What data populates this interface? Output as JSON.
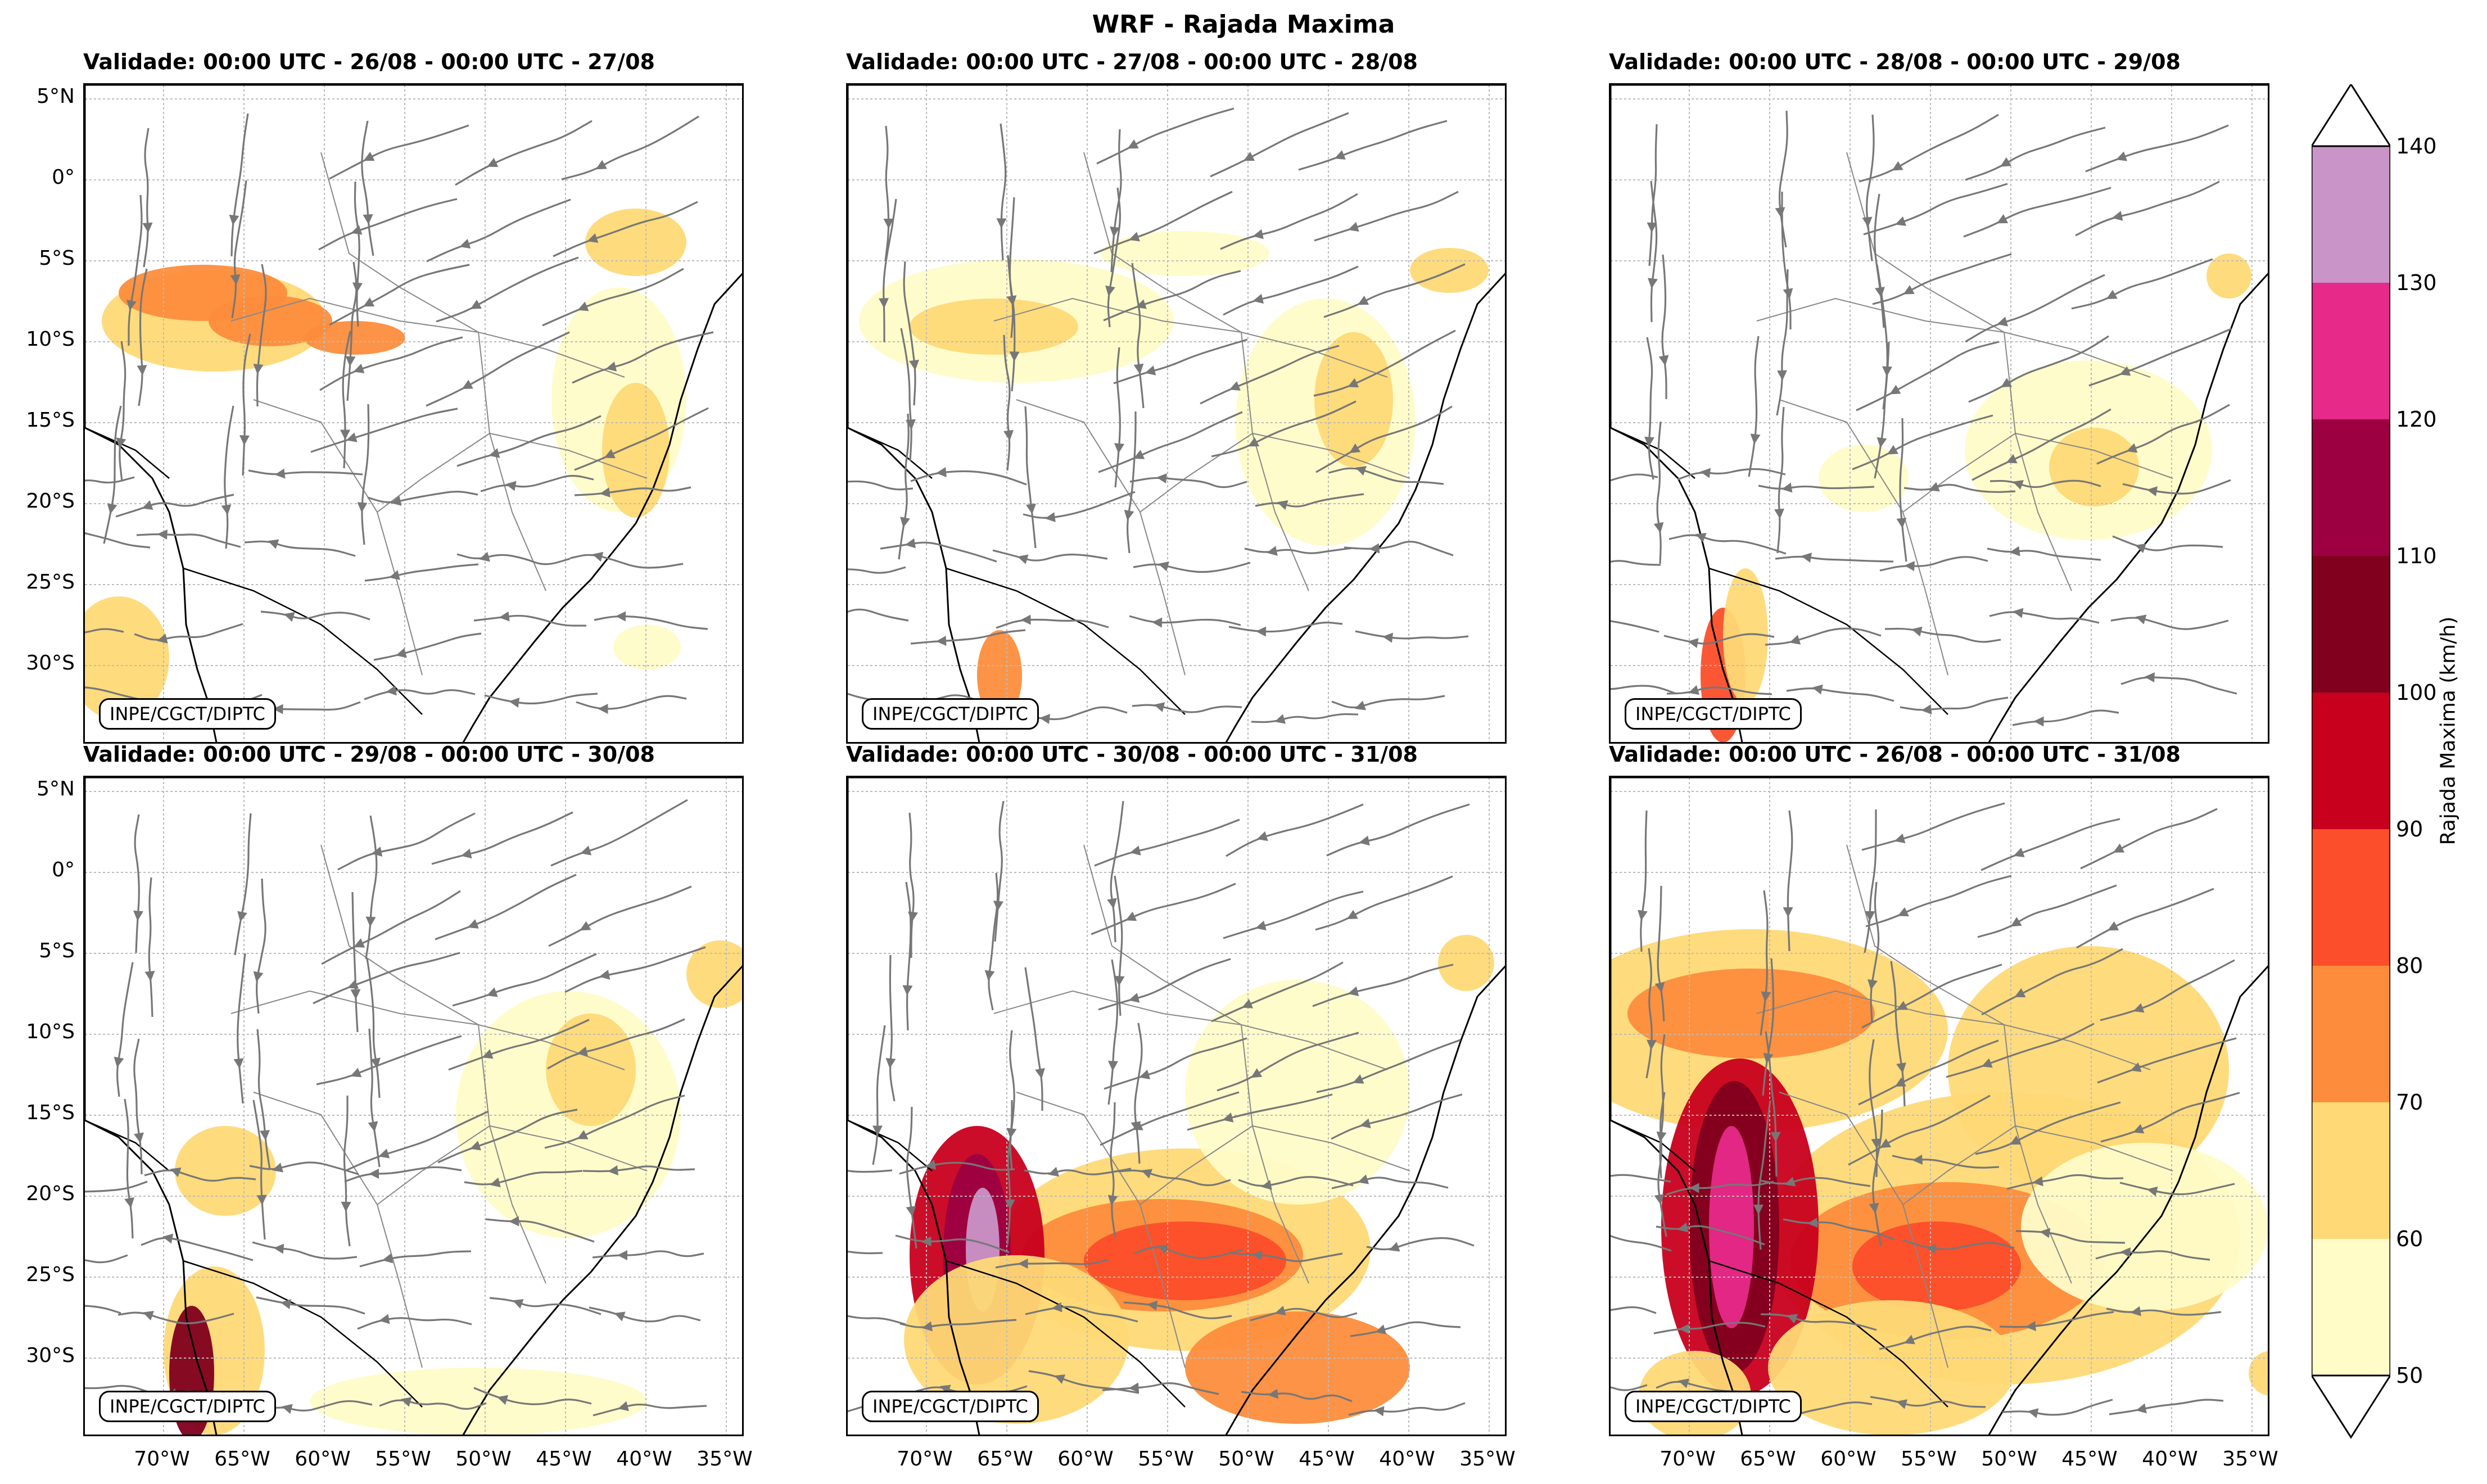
{
  "title": "WRF - Rajada Maxima",
  "credit": "INPE/CGCT/DIPTC",
  "panels": [
    {
      "title": "Validade: 00:00 UTC - 26/08 - 00:00 UTC - 27/08"
    },
    {
      "title": "Validade: 00:00 UTC - 27/08 - 00:00 UTC - 28/08"
    },
    {
      "title": "Validade: 00:00 UTC - 28/08 - 00:00 UTC - 29/08"
    },
    {
      "title": "Validade: 00:00 UTC - 29/08 - 00:00 UTC - 30/08"
    },
    {
      "title": "Validade: 00:00 UTC - 30/08 - 00:00 UTC - 31/08"
    },
    {
      "title": "Validade: 00:00 UTC - 26/08 - 00:00 UTC - 31/08"
    }
  ],
  "lat_ticks": [
    "5°N",
    "0°",
    "5°S",
    "10°S",
    "15°S",
    "20°S",
    "25°S",
    "30°S"
  ],
  "lon_ticks": [
    "70°W",
    "65°W",
    "60°W",
    "55°W",
    "50°W",
    "45°W",
    "40°W",
    "35°W"
  ],
  "colorbar": {
    "label": "Rajada Maxima (km/h)",
    "ticks": [
      "50",
      "60",
      "70",
      "80",
      "90",
      "100",
      "110",
      "120",
      "130",
      "140"
    ],
    "colors": [
      "#fffcc8",
      "#fed976",
      "#fd8d3c",
      "#fc4e2a",
      "#c8001e",
      "#80001e",
      "#9c0041",
      "#e7298a",
      "#c994c7",
      "#e7e1ef"
    ]
  },
  "streamline_color": "#777777"
}
